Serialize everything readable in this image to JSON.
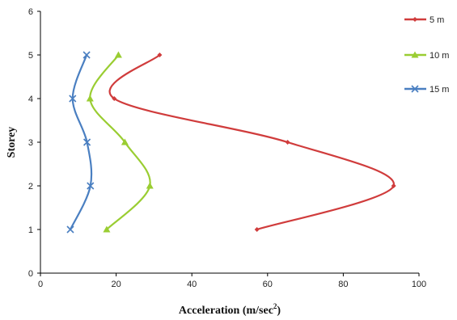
{
  "chart_data": {
    "type": "line",
    "title": "",
    "xlabel": "Acceleration (m/sec",
    "xlabel_superscript": "2",
    "xlabel_suffix": ")",
    "ylabel": "Storey",
    "xlim": [
      0,
      100
    ],
    "ylim": [
      0,
      6
    ],
    "x_ticks": [
      0,
      20,
      40,
      60,
      80,
      100
    ],
    "y_ticks": [
      0,
      1,
      2,
      3,
      4,
      5,
      6
    ],
    "grid": false,
    "legend_position": "right",
    "series": [
      {
        "name": "5 m",
        "color": "#d03c3c",
        "marker": "diamond",
        "points": [
          [
            57.2,
            1
          ],
          [
            93.3,
            2
          ],
          [
            65.3,
            3
          ],
          [
            19.5,
            4
          ],
          [
            31.5,
            5
          ]
        ]
      },
      {
        "name": "10 m",
        "color": "#9acd32",
        "marker": "triangle",
        "points": [
          [
            17.5,
            1
          ],
          [
            28.9,
            2
          ],
          [
            22.3,
            3
          ],
          [
            13.1,
            4
          ],
          [
            20.6,
            5
          ]
        ]
      },
      {
        "name": "15 m",
        "color": "#4a7fc1",
        "marker": "x",
        "points": [
          [
            7.9,
            1
          ],
          [
            13.2,
            2
          ],
          [
            12.3,
            3
          ],
          [
            8.5,
            4
          ],
          [
            12.2,
            5
          ]
        ]
      }
    ]
  }
}
